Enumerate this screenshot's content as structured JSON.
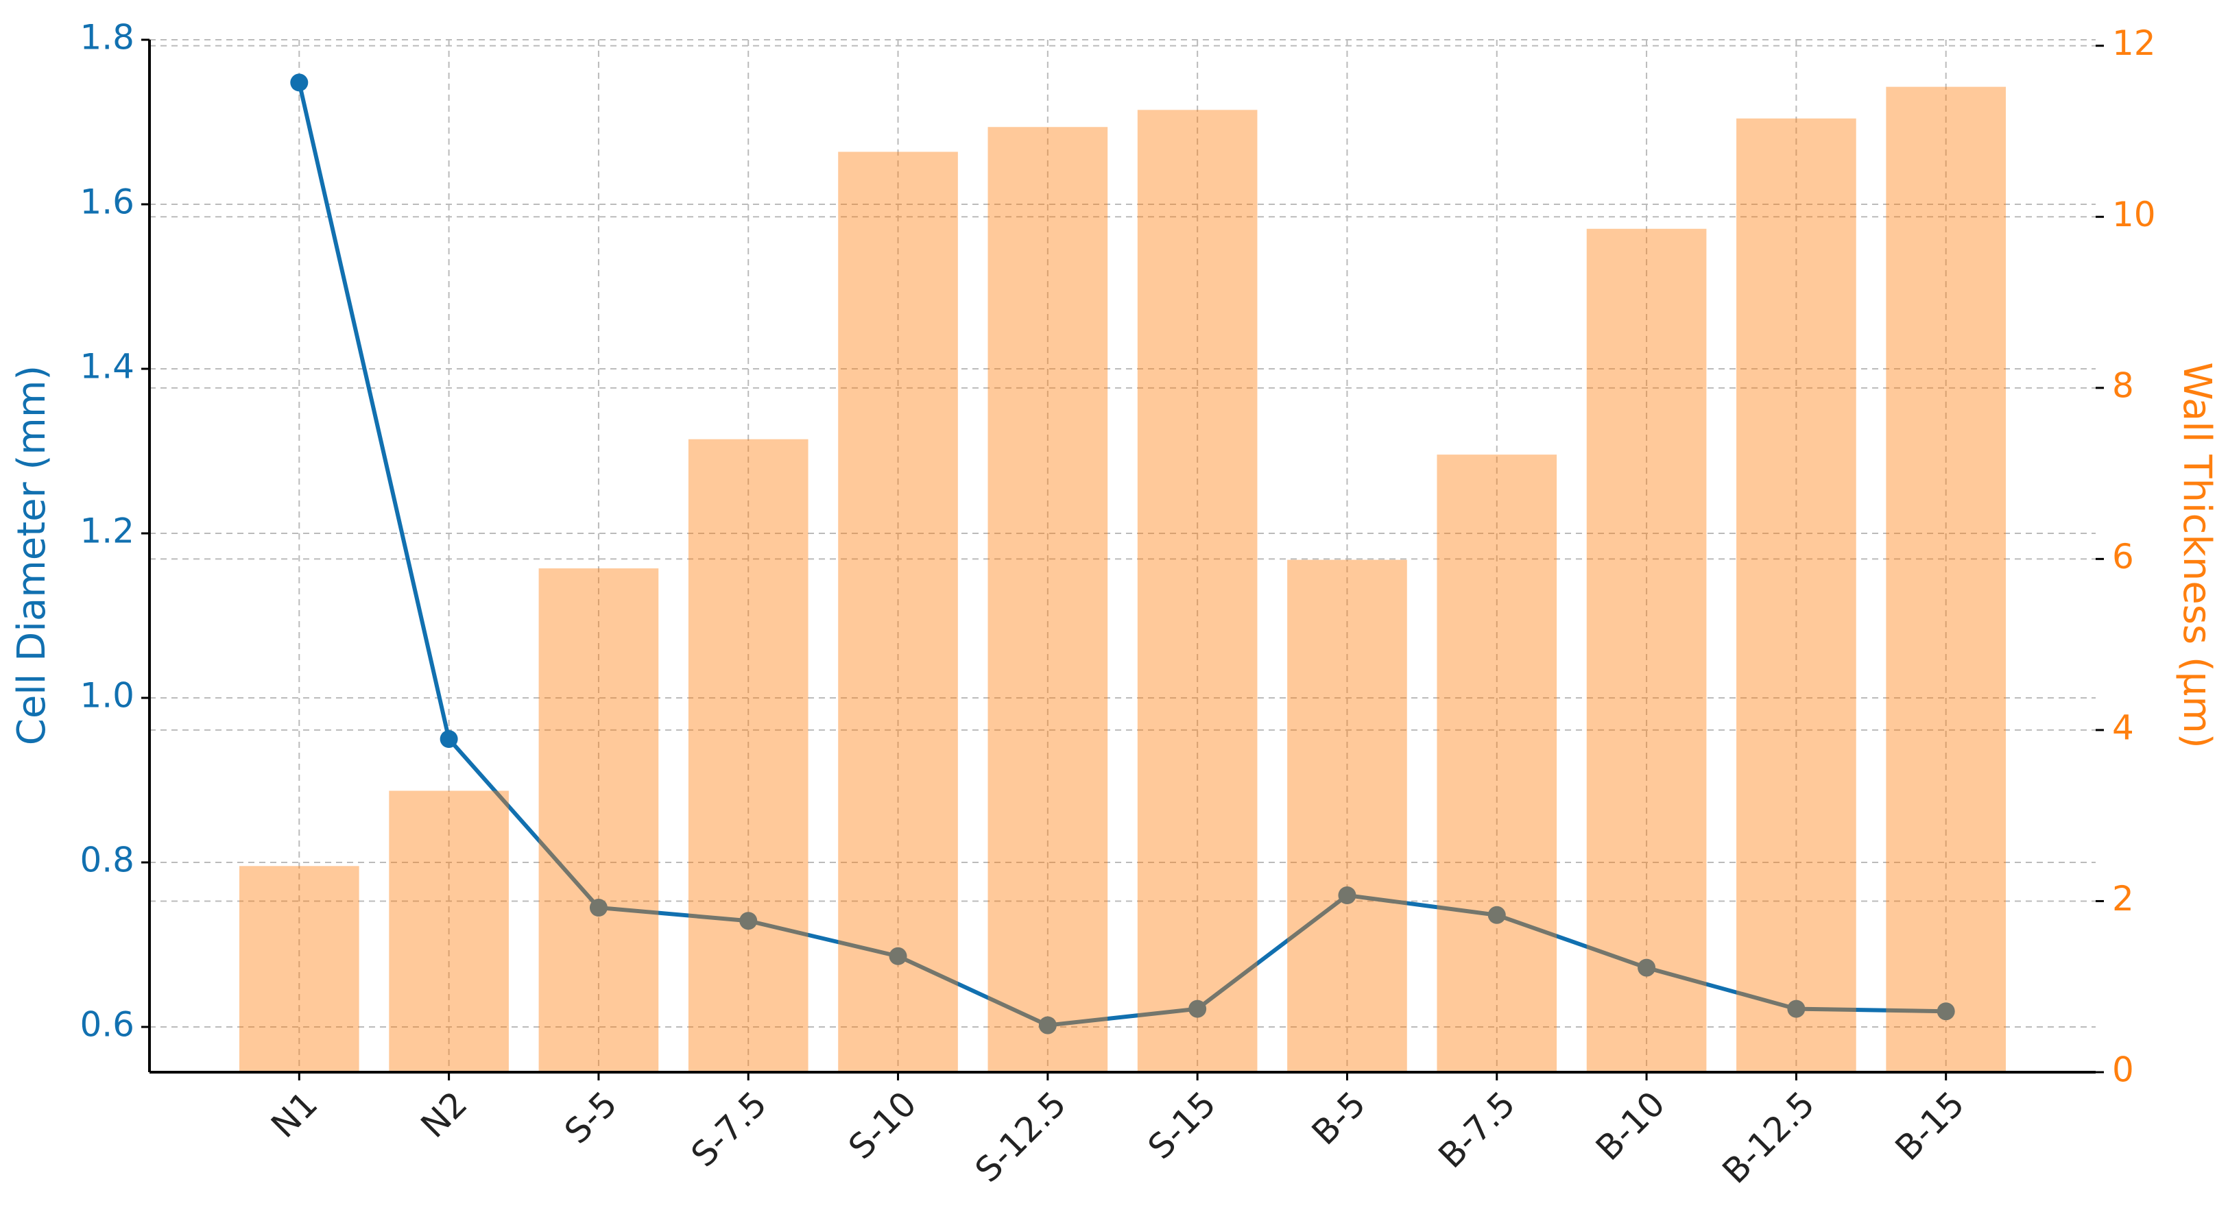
{
  "chart_data": {
    "type": "bar-line",
    "categories": [
      "N1",
      "N2",
      "S-5",
      "S-7.5",
      "S-10",
      "S-12.5",
      "S-15",
      "B-5",
      "B-7.5",
      "B-10",
      "B-12.5",
      "B-15"
    ],
    "series": [
      {
        "name": "Cell Diameter (mm)",
        "type": "line",
        "axis": "y",
        "color": "#1170b0",
        "values": [
          1.748,
          0.95,
          0.745,
          0.729,
          0.686,
          0.602,
          0.622,
          0.76,
          0.736,
          0.672,
          0.622,
          0.619
        ]
      },
      {
        "name": "Wall Thickness (µm)",
        "type": "bar",
        "axis": "y2",
        "color": "#ff7f0e",
        "values": [
          2.41,
          3.29,
          5.89,
          7.4,
          10.76,
          11.05,
          11.25,
          5.99,
          7.22,
          9.86,
          11.15,
          11.52
        ]
      }
    ],
    "ylabel": "Cell Diameter (mm)",
    "y2label": "Wall Thickness (µm)",
    "ylim": [
      0.545,
      1.8
    ],
    "yticks": [
      0.6,
      0.8,
      {
        "value": 1,
        "label": "1.0"
      },
      1.2,
      1.4,
      1.6,
      1.8
    ],
    "y2lim": [
      0,
      12.07
    ],
    "y2ticks": [
      0,
      2,
      4,
      6,
      8,
      10,
      12
    ],
    "grid": true
  }
}
